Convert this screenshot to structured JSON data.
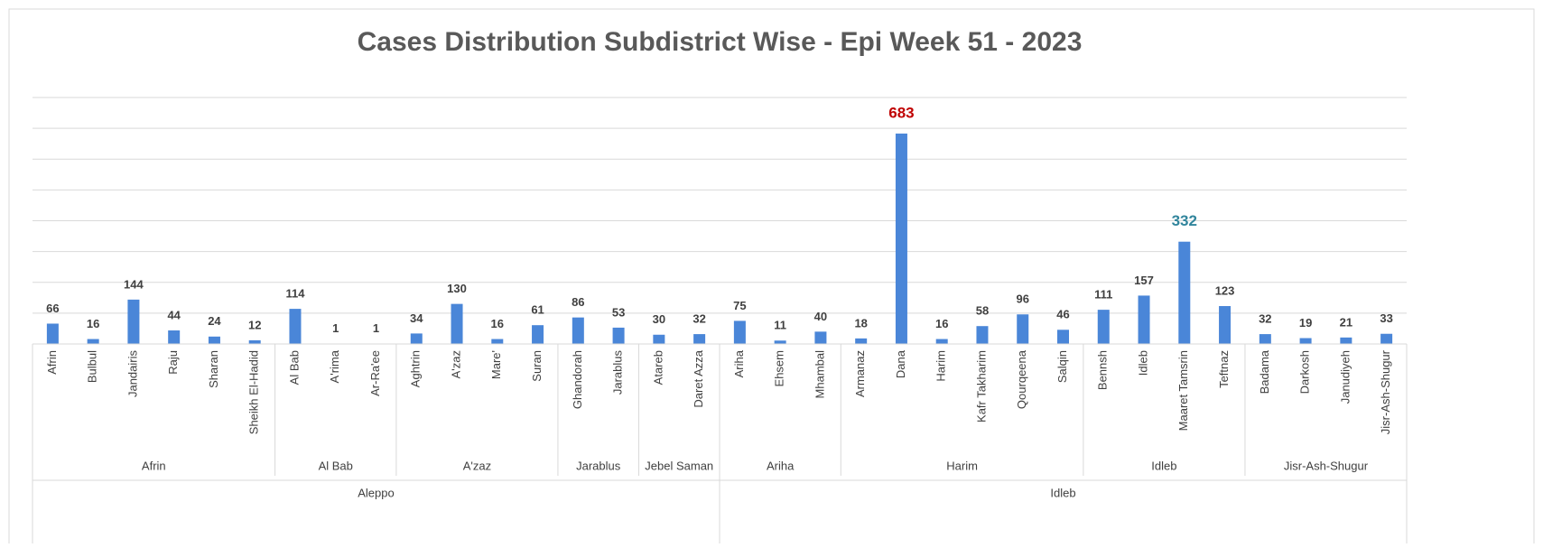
{
  "chart_data": {
    "type": "bar",
    "title": "Cases Distribution Subdistrict Wise - Epi Week 51 - 2023",
    "categories": [
      "Afrin",
      "Bulbul",
      "Jandairis",
      "Raju",
      "Sharan",
      "Sheikh El-Hadid",
      "Al Bab",
      "A'rima",
      "Ar-Ra'ee",
      "Aghtrin",
      "A'zaz",
      "Mare'",
      "Suran",
      "Ghandorah",
      "Jarablus",
      "Atareb",
      "Daret Azza",
      "Ariha",
      "Ehsem",
      "Mhambal",
      "Armanaz",
      "Dana",
      "Harim",
      "Kafr Takharim",
      "Qourqeena",
      "Salqin",
      "Bennsh",
      "Idleb",
      "Maaret Tamsrin",
      "Teftnaz",
      "Badama",
      "Darkosh",
      "Janudiyeh",
      "Jisr-Ash-Shugur"
    ],
    "values": [
      66,
      16,
      144,
      44,
      24,
      12,
      114,
      1,
      1,
      34,
      130,
      16,
      61,
      86,
      53,
      30,
      32,
      75,
      11,
      40,
      18,
      683,
      16,
      58,
      96,
      46,
      111,
      157,
      332,
      123,
      32,
      19,
      21,
      33
    ],
    "label_colors": [
      "#404040",
      "#404040",
      "#404040",
      "#404040",
      "#404040",
      "#404040",
      "#404040",
      "#404040",
      "#404040",
      "#404040",
      "#404040",
      "#404040",
      "#404040",
      "#404040",
      "#404040",
      "#404040",
      "#404040",
      "#404040",
      "#404040",
      "#404040",
      "#404040",
      "#c00000",
      "#404040",
      "#404040",
      "#404040",
      "#404040",
      "#404040",
      "#404040",
      "#31859c",
      "#404040",
      "#404040",
      "#404040",
      "#404040",
      "#404040"
    ],
    "groups": [
      [
        {
          "label": "Afrin",
          "span": 6
        },
        {
          "label": "Al Bab",
          "span": 3
        },
        {
          "label": "A'zaz",
          "span": 4
        },
        {
          "label": "Jarablus",
          "span": 2
        },
        {
          "label": "Jebel Saman",
          "span": 2
        },
        {
          "label": "Ariha",
          "span": 3
        },
        {
          "label": "Harim",
          "span": 6
        },
        {
          "label": "Idleb",
          "span": 4
        },
        {
          "label": "Jisr-Ash-Shugur",
          "span": 4
        }
      ],
      [
        {
          "label": "Aleppo",
          "span": 17
        },
        {
          "label": "Idleb",
          "span": 17
        }
      ]
    ],
    "color": "#4a86d8",
    "ylim": [
      0,
      800
    ],
    "yticks": [
      0,
      100,
      200,
      300,
      400,
      500,
      600,
      700,
      800
    ],
    "grid": true
  }
}
